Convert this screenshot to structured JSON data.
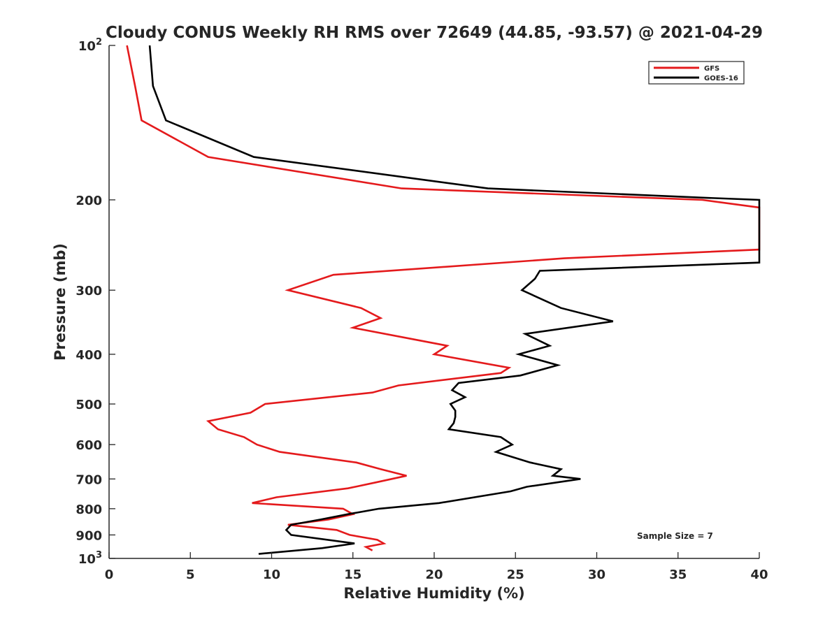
{
  "chart_data": {
    "type": "line",
    "title": "Cloudy CONUS Weekly RH RMS over 72649 (44.85, -93.57) @ 2021-04-29",
    "xlabel": "Relative Humidity (%)",
    "ylabel": "Pressure (mb)",
    "xlim": [
      0,
      40
    ],
    "ylim": [
      100,
      1000
    ],
    "y_scale": "log",
    "y_reversed": true,
    "grid": false,
    "legend_position": "top-right",
    "x_ticks": [
      0,
      5,
      10,
      15,
      20,
      25,
      30,
      35,
      40
    ],
    "y_tick_labels": [
      {
        "value": 100,
        "base": "10",
        "exp": "2"
      },
      {
        "value": 200,
        "text": "200"
      },
      {
        "value": 300,
        "text": "300"
      },
      {
        "value": 400,
        "text": "400"
      },
      {
        "value": 500,
        "text": "500"
      },
      {
        "value": 600,
        "text": "600"
      },
      {
        "value": 700,
        "text": "700"
      },
      {
        "value": 800,
        "text": "800"
      },
      {
        "value": 900,
        "text": "900"
      },
      {
        "value": 1000,
        "base": "10",
        "exp": "3"
      }
    ],
    "annotation": "Sample Size = 7",
    "series": [
      {
        "name": "GFS",
        "color": "#e41a1c",
        "points": [
          [
            1.1,
            100
          ],
          [
            1.6,
            120
          ],
          [
            2.0,
            140
          ],
          [
            6.1,
            165
          ],
          [
            18.0,
            190
          ],
          [
            36.5,
            200
          ],
          [
            40.0,
            207
          ],
          [
            40.0,
            250
          ],
          [
            28.0,
            260
          ],
          [
            13.8,
            280
          ],
          [
            11.0,
            300
          ],
          [
            15.5,
            325
          ],
          [
            16.7,
            340
          ],
          [
            15.0,
            355
          ],
          [
            20.8,
            385
          ],
          [
            20.0,
            400
          ],
          [
            24.6,
            425
          ],
          [
            24.1,
            435
          ],
          [
            17.8,
            460
          ],
          [
            16.2,
            475
          ],
          [
            9.6,
            500
          ],
          [
            8.7,
            520
          ],
          [
            6.1,
            540
          ],
          [
            6.7,
            560
          ],
          [
            8.3,
            580
          ],
          [
            9.1,
            600
          ],
          [
            10.5,
            620
          ],
          [
            15.2,
            650
          ],
          [
            16.7,
            670
          ],
          [
            18.3,
            690
          ],
          [
            16.5,
            710
          ],
          [
            14.7,
            730
          ],
          [
            10.3,
            760
          ],
          [
            8.8,
            780
          ],
          [
            14.4,
            800
          ],
          [
            15.0,
            820
          ],
          [
            13.5,
            840
          ],
          [
            11.0,
            860
          ],
          [
            14.0,
            880
          ],
          [
            14.8,
            900
          ],
          [
            16.5,
            920
          ],
          [
            16.9,
            935
          ],
          [
            15.8,
            950
          ],
          [
            16.2,
            965
          ]
        ]
      },
      {
        "name": "GOES-16",
        "color": "#000000",
        "points": [
          [
            2.5,
            100
          ],
          [
            2.7,
            120
          ],
          [
            3.5,
            140
          ],
          [
            8.9,
            165
          ],
          [
            23.3,
            190
          ],
          [
            36.5,
            198
          ],
          [
            40.0,
            200
          ],
          [
            40.0,
            265
          ],
          [
            26.5,
            275
          ],
          [
            26.2,
            285
          ],
          [
            25.4,
            300
          ],
          [
            27.8,
            325
          ],
          [
            31.0,
            345
          ],
          [
            25.6,
            365
          ],
          [
            27.1,
            385
          ],
          [
            25.2,
            400
          ],
          [
            27.6,
            420
          ],
          [
            25.3,
            440
          ],
          [
            21.5,
            455
          ],
          [
            21.1,
            470
          ],
          [
            21.9,
            485
          ],
          [
            21.0,
            500
          ],
          [
            21.3,
            515
          ],
          [
            21.3,
            530
          ],
          [
            21.2,
            545
          ],
          [
            20.9,
            560
          ],
          [
            24.1,
            580
          ],
          [
            24.8,
            600
          ],
          [
            23.8,
            620
          ],
          [
            25.9,
            650
          ],
          [
            27.8,
            670
          ],
          [
            27.3,
            690
          ],
          [
            29.0,
            700
          ],
          [
            25.7,
            725
          ],
          [
            24.7,
            740
          ],
          [
            20.3,
            780
          ],
          [
            16.6,
            800
          ],
          [
            14.7,
            820
          ],
          [
            13.0,
            840
          ],
          [
            11.2,
            860
          ],
          [
            10.9,
            880
          ],
          [
            11.2,
            900
          ],
          [
            15.1,
            935
          ],
          [
            13.1,
            955
          ],
          [
            9.2,
            980
          ]
        ]
      }
    ]
  }
}
